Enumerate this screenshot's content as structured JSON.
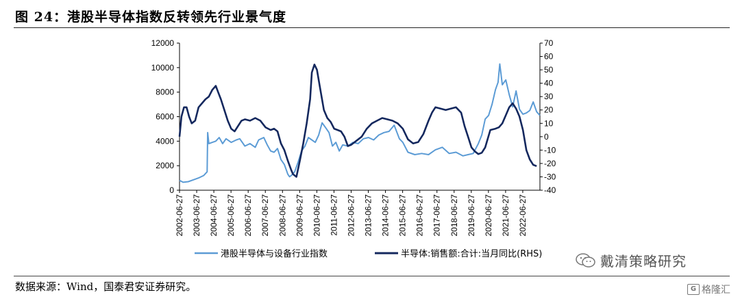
{
  "figure": {
    "title": "图 24：港股半导体指数反转领先行业景气度",
    "source": "数据来源：Wind，国泰君安证券研究。"
  },
  "watermark": {
    "wechat_name": "戴清策略研究",
    "wechat_icon": "wechat-icon",
    "gelonghui_icon": "G",
    "gelonghui_text": "格隆汇"
  },
  "colors": {
    "index": "#5b9bd5",
    "sales": "#14285e",
    "title_rule": "#222222"
  },
  "chart_data": {
    "type": "line",
    "title": "",
    "x_tick_labels": [
      "2002-06-27",
      "2003-06-27",
      "2004-06-27",
      "2005-06-27",
      "2006-06-27",
      "2007-06-27",
      "2008-06-27",
      "2009-06-27",
      "2010-06-27",
      "2011-06-27",
      "2012-06-27",
      "2013-06-27",
      "2014-06-27",
      "2015-06-27",
      "2016-06-27",
      "2017-06-27",
      "2018-06-27",
      "2019-06-27",
      "2020-06-27",
      "2021-06-27",
      "2022-06-27"
    ],
    "x_range": [
      2002.49,
      2023.49
    ],
    "y_left": {
      "range": [
        0,
        12000
      ],
      "ticks": [
        0,
        2000,
        4000,
        6000,
        8000,
        10000,
        12000
      ]
    },
    "y_right": {
      "range": [
        -40,
        70
      ],
      "ticks": [
        -40,
        -30,
        -20,
        -10,
        0,
        10,
        20,
        30,
        40,
        50,
        60,
        70
      ]
    },
    "legend_position": "bottom",
    "series": [
      {
        "name": "港股半导体与设备行业指数",
        "axis": "left",
        "x": [
          2002.49,
          2002.7,
          2003.0,
          2003.3,
          2003.6,
          2003.9,
          2004.1,
          2004.13,
          2004.2,
          2004.4,
          2004.6,
          2004.8,
          2005.0,
          2005.2,
          2005.5,
          2005.8,
          2006.0,
          2006.3,
          2006.6,
          2006.9,
          2007.1,
          2007.4,
          2007.6,
          2007.8,
          2008.0,
          2008.2,
          2008.4,
          2008.6,
          2008.8,
          2008.9,
          2009.0,
          2009.2,
          2009.4,
          2009.6,
          2009.8,
          2010.0,
          2010.2,
          2010.4,
          2010.6,
          2010.8,
          2011.0,
          2011.2,
          2011.4,
          2011.6,
          2011.8,
          2012.0,
          2012.3,
          2012.6,
          2012.9,
          2013.2,
          2013.5,
          2013.8,
          2014.1,
          2014.4,
          2014.7,
          2015.0,
          2015.3,
          2015.5,
          2015.8,
          2016.2,
          2016.6,
          2017.0,
          2017.4,
          2017.8,
          2018.2,
          2018.6,
          2019.0,
          2019.3,
          2019.6,
          2019.9,
          2020.1,
          2020.3,
          2020.5,
          2020.7,
          2020.9,
          2021.05,
          2021.15,
          2021.3,
          2021.5,
          2021.7,
          2021.9,
          2022.1,
          2022.3,
          2022.5,
          2022.7,
          2022.9,
          2023.1,
          2023.3,
          2023.49
        ],
        "values": [
          800,
          650,
          700,
          850,
          1000,
          1200,
          1500,
          4700,
          3800,
          3900,
          4000,
          4300,
          3800,
          4200,
          3900,
          4100,
          4200,
          3600,
          3800,
          3500,
          4100,
          4300,
          3700,
          3200,
          3100,
          3400,
          2500,
          2100,
          1300,
          1100,
          1200,
          1500,
          2300,
          3200,
          3600,
          4300,
          4100,
          3900,
          4500,
          5500,
          5100,
          4700,
          3600,
          3900,
          3200,
          3700,
          3600,
          3900,
          3800,
          4200,
          4300,
          4100,
          4500,
          4700,
          4800,
          5300,
          4200,
          3900,
          3100,
          2900,
          3000,
          2900,
          3300,
          3500,
          3000,
          3100,
          2800,
          2900,
          3000,
          3800,
          4500,
          5800,
          6100,
          7000,
          8200,
          8800,
          10300,
          8600,
          9000,
          7800,
          6800,
          8100,
          6600,
          6200,
          6300,
          6500,
          7200,
          6400,
          6100
        ]
      },
      {
        "name": "半导体:销售额:合计:当月同比(RHS)",
        "axis": "right",
        "x": [
          2002.49,
          2002.6,
          2002.75,
          2002.9,
          2003.05,
          2003.2,
          2003.4,
          2003.6,
          2003.8,
          2004.0,
          2004.2,
          2004.4,
          2004.6,
          2004.75,
          2004.9,
          2005.1,
          2005.3,
          2005.5,
          2005.7,
          2005.9,
          2006.1,
          2006.3,
          2006.6,
          2006.9,
          2007.2,
          2007.5,
          2007.8,
          2008.0,
          2008.2,
          2008.4,
          2008.6,
          2008.8,
          2009.0,
          2009.1,
          2009.3,
          2009.5,
          2009.7,
          2009.9,
          2010.1,
          2010.2,
          2010.35,
          2010.5,
          2010.7,
          2010.9,
          2011.1,
          2011.3,
          2011.5,
          2011.7,
          2011.9,
          2012.1,
          2012.3,
          2012.5,
          2012.8,
          2013.1,
          2013.4,
          2013.7,
          2014.0,
          2014.3,
          2014.6,
          2014.9,
          2015.2,
          2015.5,
          2015.8,
          2016.1,
          2016.4,
          2016.7,
          2017.0,
          2017.2,
          2017.4,
          2017.7,
          2018.0,
          2018.3,
          2018.6,
          2018.9,
          2019.1,
          2019.3,
          2019.5,
          2019.7,
          2019.9,
          2020.1,
          2020.3,
          2020.6,
          2020.9,
          2021.1,
          2021.3,
          2021.5,
          2021.7,
          2021.9,
          2022.1,
          2022.3,
          2022.5,
          2022.7,
          2022.9,
          2023.1,
          2023.3
        ],
        "values": [
          0,
          15,
          22,
          22,
          15,
          10,
          12,
          22,
          25,
          28,
          30,
          35,
          38,
          33,
          28,
          20,
          12,
          6,
          4,
          8,
          12,
          13,
          12,
          14,
          12,
          7,
          5,
          6,
          4,
          -5,
          -10,
          -18,
          -25,
          -28,
          -30,
          -18,
          -5,
          10,
          28,
          48,
          54,
          50,
          35,
          20,
          14,
          11,
          6,
          5,
          4,
          0,
          -7,
          -6,
          -3,
          0,
          6,
          10,
          12,
          14,
          13,
          12,
          10,
          6,
          -2,
          -5,
          -4,
          2,
          12,
          18,
          22,
          21,
          20,
          21,
          22,
          18,
          8,
          0,
          -8,
          -11,
          -13,
          -12,
          -8,
          5,
          6,
          7,
          10,
          16,
          22,
          25,
          21,
          15,
          5,
          -10,
          -17,
          -21,
          -22
        ]
      }
    ]
  }
}
